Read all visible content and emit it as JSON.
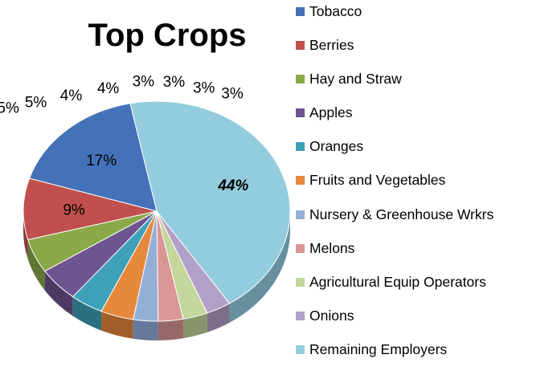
{
  "chart_data": {
    "type": "pie",
    "title": "Top Crops",
    "slices": [
      {
        "label": "Tobacco",
        "value": 17,
        "display": "17%",
        "color": "#4472b8",
        "side": "#2d4f80"
      },
      {
        "label": "Berries",
        "value": 9,
        "display": "9%",
        "color": "#c0504d",
        "side": "#86383a"
      },
      {
        "label": "Hay and Straw",
        "value": 5,
        "display": "5%",
        "color": "#8aaa4a",
        "side": "#5f7634"
      },
      {
        "label": "Apples",
        "value": 5,
        "display": "5%",
        "color": "#6e5490",
        "side": "#4c3a64"
      },
      {
        "label": "Oranges",
        "value": 4,
        "display": "4%",
        "color": "#3fa1b8",
        "side": "#2b7080"
      },
      {
        "label": "Fruits and Vegetables",
        "value": 4,
        "display": "4%",
        "color": "#e6893c",
        "side": "#a05f2a"
      },
      {
        "label": "Nursery & Greenhouse Wrkrs",
        "value": 3,
        "display": "3%",
        "color": "#94afd6",
        "side": "#67799a"
      },
      {
        "label": "Melons",
        "value": 3,
        "display": "3%",
        "color": "#da9696",
        "side": "#986868"
      },
      {
        "label": "Agricultural Equip Operators",
        "value": 3,
        "display": "3%",
        "color": "#c3d69b",
        "side": "#88956c"
      },
      {
        "label": "Onions",
        "value": 3,
        "display": "3%",
        "color": "#b1a0c7",
        "side": "#7b6f8b"
      },
      {
        "label": "Remaining Employers",
        "value": 44,
        "display": "44%",
        "color": "#93cddd",
        "side": "#6690a0"
      }
    ],
    "legend_position": "right"
  }
}
